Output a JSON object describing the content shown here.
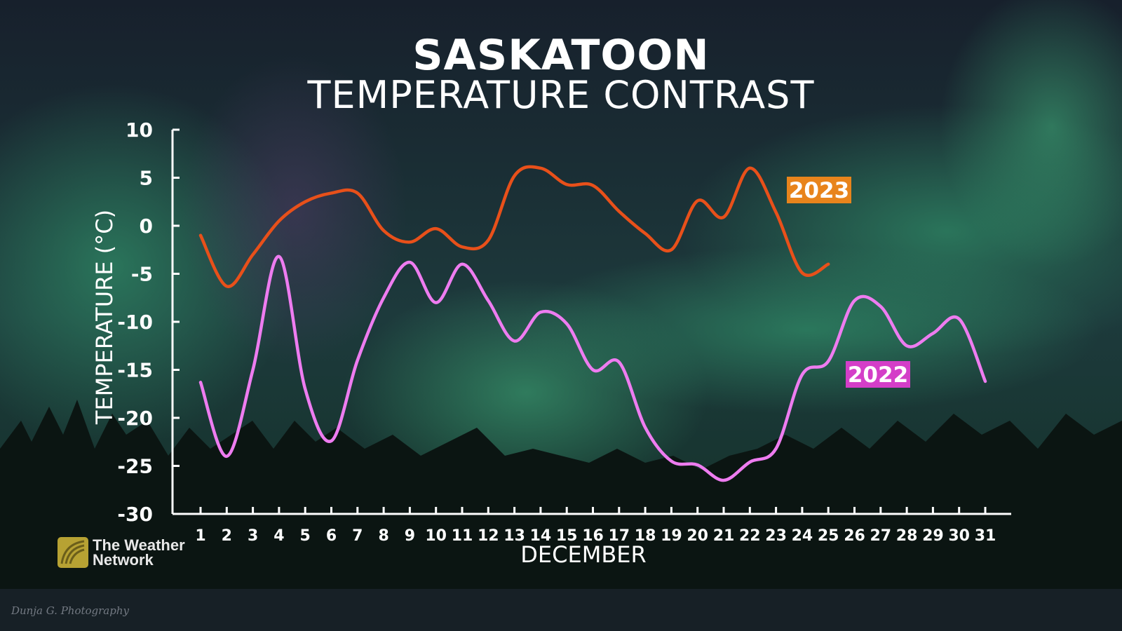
{
  "title": "SASKATOON",
  "subtitle": "TEMPERATURE CONTRAST",
  "brand": {
    "line1": "The Weather",
    "line2": "Network"
  },
  "photo_credit": "Dunja G. Photography",
  "colors": {
    "2023": "#e8501a",
    "2022": "#ee7cf0",
    "label_2023_bg": "#e8841c",
    "label_2022_bg": "#d43ec8"
  },
  "chart_data": {
    "type": "line",
    "xlabel": "DECEMBER",
    "ylabel": "TEMPERATURE (°C)",
    "ylim": [
      -30,
      10
    ],
    "yticks": [
      10,
      5,
      0,
      -5,
      -10,
      -15,
      -20,
      -25,
      -30
    ],
    "x": [
      1,
      2,
      3,
      4,
      5,
      6,
      7,
      8,
      9,
      10,
      11,
      12,
      13,
      14,
      15,
      16,
      17,
      18,
      19,
      20,
      21,
      22,
      23,
      24,
      25,
      26,
      27,
      28,
      29,
      30,
      31
    ],
    "grid": false,
    "legend": "inline labels",
    "series": [
      {
        "name": "2023",
        "x": [
          1,
          2,
          3,
          4,
          5,
          6,
          7,
          8,
          9,
          10,
          11,
          12,
          13,
          14,
          15,
          16,
          17,
          18,
          19,
          20,
          21,
          22,
          23,
          24,
          25
        ],
        "values": [
          -1,
          -6.3,
          -3,
          0.5,
          2.5,
          3.4,
          3.4,
          -0.5,
          -1.7,
          -0.3,
          -2.2,
          -1.5,
          5.2,
          6,
          4.3,
          4.2,
          1.5,
          -0.8,
          -2.5,
          2.6,
          0.9,
          6,
          1.4,
          -4.9,
          -4
        ]
      },
      {
        "name": "2022",
        "x": [
          1,
          2,
          3,
          4,
          5,
          6,
          7,
          8,
          9,
          10,
          11,
          12,
          13,
          14,
          15,
          16,
          17,
          18,
          19,
          20,
          21,
          22,
          23,
          24,
          25,
          26,
          27,
          28,
          29,
          30,
          31
        ],
        "values": [
          -16.3,
          -24,
          -15,
          -3.2,
          -17,
          -22.4,
          -14,
          -7.5,
          -3.8,
          -8,
          -4,
          -7.8,
          -12,
          -9,
          -10.2,
          -15,
          -14.2,
          -21,
          -24.5,
          -24.9,
          -26.5,
          -24.6,
          -23.2,
          -15.5,
          -14.1,
          -7.8,
          -8.4,
          -12.5,
          -11.2,
          -9.7,
          -16.2
        ]
      }
    ]
  }
}
